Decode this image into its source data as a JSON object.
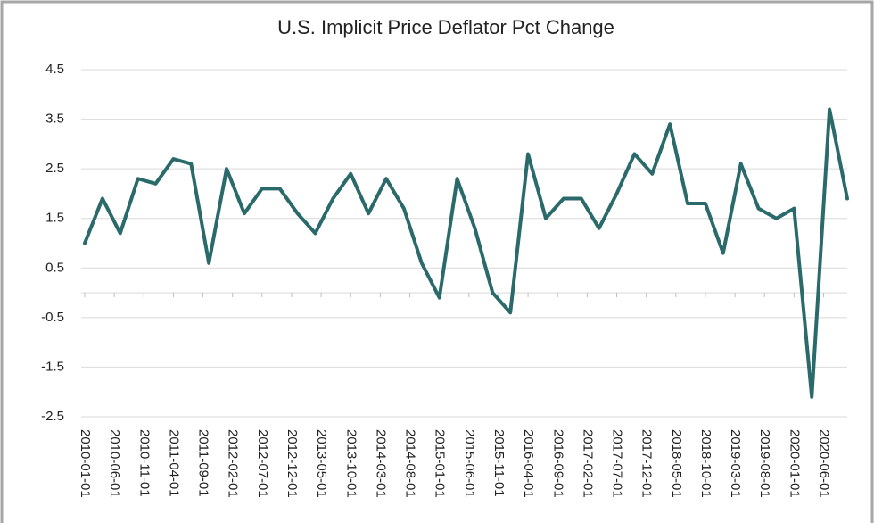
{
  "chart_data": {
    "type": "line",
    "title": "U.S. Implicit Price Deflator Pct Change",
    "x": [
      "2010-01-01",
      "2010-04-01",
      "2010-07-01",
      "2010-10-01",
      "2011-01-01",
      "2011-04-01",
      "2011-07-01",
      "2011-10-01",
      "2012-01-01",
      "2012-04-01",
      "2012-07-01",
      "2012-10-01",
      "2013-01-01",
      "2013-04-01",
      "2013-07-01",
      "2013-10-01",
      "2014-01-01",
      "2014-04-01",
      "2014-07-01",
      "2014-10-01",
      "2015-01-01",
      "2015-04-01",
      "2015-07-01",
      "2015-10-01",
      "2016-01-01",
      "2016-04-01",
      "2016-07-01",
      "2016-10-01",
      "2017-01-01",
      "2017-04-01",
      "2017-07-01",
      "2017-10-01",
      "2018-01-01",
      "2018-04-01",
      "2018-07-01",
      "2018-10-01",
      "2019-01-01",
      "2019-04-01",
      "2019-07-01",
      "2019-10-01",
      "2020-01-01",
      "2020-04-01",
      "2020-07-01",
      "2020-10-01"
    ],
    "series": [
      {
        "name": "Pct Change",
        "color": "#2b6a6a",
        "values": [
          1.0,
          1.9,
          1.2,
          2.3,
          2.2,
          2.7,
          2.6,
          0.6,
          2.5,
          1.6,
          2.1,
          2.1,
          1.6,
          1.2,
          1.9,
          2.4,
          1.6,
          2.3,
          1.7,
          0.6,
          -0.1,
          2.3,
          1.3,
          0.0,
          -0.4,
          2.8,
          1.5,
          1.9,
          1.9,
          1.3,
          2.0,
          2.8,
          2.4,
          3.4,
          1.8,
          1.8,
          0.8,
          2.6,
          1.7,
          1.5,
          1.7,
          -2.1,
          3.7,
          1.9
        ]
      }
    ],
    "xlim": [
      "2010-01-01",
      "2020-10-01"
    ],
    "xticks": [
      "2010-01-01",
      "2010-06-01",
      "2010-11-01",
      "2011-04-01",
      "2011-09-01",
      "2012-02-01",
      "2012-07-01",
      "2012-12-01",
      "2013-05-01",
      "2013-10-01",
      "2014-03-01",
      "2014-08-01",
      "2015-01-01",
      "2015-06-01",
      "2015-11-01",
      "2016-04-01",
      "2016-09-01",
      "2017-02-01",
      "2017-07-01",
      "2017-12-01",
      "2018-05-01",
      "2018-10-01",
      "2019-03-01",
      "2019-08-01",
      "2020-01-01",
      "2020-06-01"
    ],
    "ylim": [
      -2.5,
      4.5
    ],
    "yticks": [
      -2.5,
      -1.5,
      -0.5,
      0.5,
      1.5,
      2.5,
      3.5,
      4.5
    ],
    "grid": true
  }
}
